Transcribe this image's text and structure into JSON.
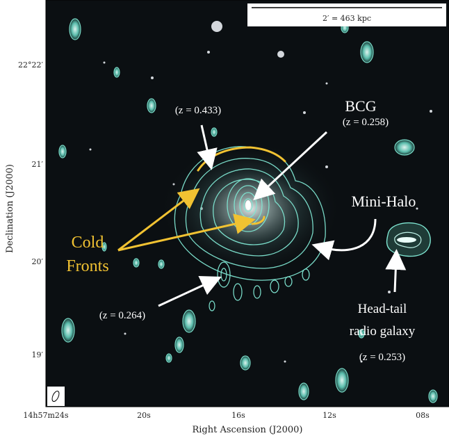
{
  "scale_bar": {
    "label": "2′ = 463 kpc"
  },
  "axes": {
    "xlabel": "Right Ascension (J2000)",
    "ylabel": "Declination (J2000)",
    "xticks": [
      "14h57m24s",
      "20s",
      "16s",
      "12s",
      "08s"
    ],
    "yticks": [
      "22°22′",
      "21′",
      "20′",
      "19′"
    ]
  },
  "annotations": {
    "bcg_title": "BCG",
    "bcg_z": "(z = 0.258)",
    "z433": "(z = 0.433)",
    "z264": "(z = 0.264)",
    "minihalo": "Mini-Halo",
    "cold_line1": "Cold",
    "cold_line2": "Fronts",
    "headtail_line1": "Head-tail",
    "headtail_line2": "radio galaxy",
    "headtail_z": "(z = 0.253)"
  },
  "colors": {
    "contour": "#7fe6d2",
    "cold_fronts": "#f1c232",
    "sky": "#0b0f12"
  }
}
